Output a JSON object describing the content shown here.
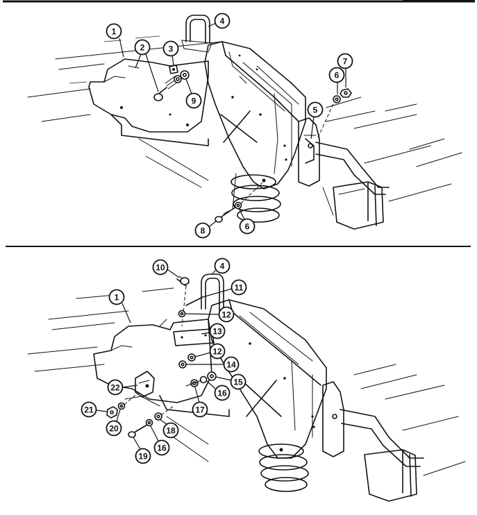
{
  "figure": {
    "panels": [
      {
        "id": "top",
        "callouts": [
          "1",
          "2",
          "3",
          "4",
          "5",
          "6",
          "7",
          "6",
          "8",
          "9"
        ]
      },
      {
        "id": "bottom",
        "callouts": [
          "10",
          "4",
          "11",
          "1",
          "12",
          "13",
          "12",
          "14",
          "22",
          "15",
          "16",
          "17",
          "21",
          "20",
          "18",
          "19",
          "16"
        ]
      }
    ],
    "colors": {
      "line": "#111111",
      "background": "#ffffff"
    }
  }
}
